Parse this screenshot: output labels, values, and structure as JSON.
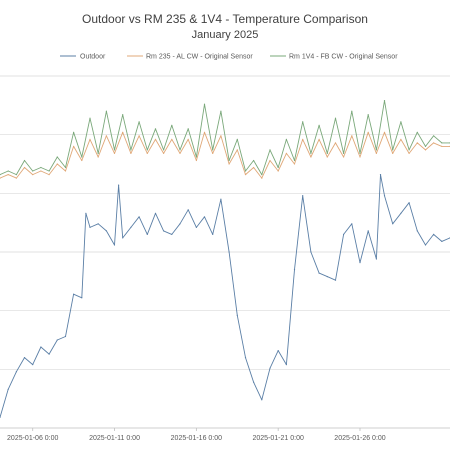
{
  "chart_data": {
    "type": "line",
    "title": "Outdoor vs RM 235 & 1V4 - Temperature Comparison",
    "subtitle": "January 2025",
    "xlabel": "",
    "ylabel": "",
    "x_axis": {
      "type": "date",
      "tick_labels": [
        "2025-01-06 0:00",
        "2025-01-11 0:00",
        "2025-01-16 0:00",
        "2025-01-21 0:00",
        "2025-01-26 0:00"
      ],
      "range": [
        "2025-01-04 00:00",
        "2025-01-31 12:00"
      ]
    },
    "y_axis": {
      "gridlines": 6,
      "tick_labels_visible": false
    },
    "grid": true,
    "legend": "top",
    "series": [
      {
        "name": "Outdoor",
        "color": "#5b7fa6",
        "points": [
          [
            "2025-01-04 00:00",
            3
          ],
          [
            "2025-01-04 12:00",
            11
          ],
          [
            "2025-01-05 00:00",
            16
          ],
          [
            "2025-01-05 12:00",
            20
          ],
          [
            "2025-01-06 00:00",
            18
          ],
          [
            "2025-01-06 12:00",
            23
          ],
          [
            "2025-01-07 00:00",
            21
          ],
          [
            "2025-01-07 12:00",
            25
          ],
          [
            "2025-01-08 00:00",
            26
          ],
          [
            "2025-01-08 12:00",
            38
          ],
          [
            "2025-01-09 00:00",
            37
          ],
          [
            "2025-01-09 06:00",
            61
          ],
          [
            "2025-01-09 12:00",
            57
          ],
          [
            "2025-01-10 00:00",
            58
          ],
          [
            "2025-01-10 12:00",
            56
          ],
          [
            "2025-01-11 00:00",
            52
          ],
          [
            "2025-01-11 06:00",
            69
          ],
          [
            "2025-01-11 12:00",
            54
          ],
          [
            "2025-01-12 00:00",
            57
          ],
          [
            "2025-01-12 12:00",
            60
          ],
          [
            "2025-01-13 00:00",
            55
          ],
          [
            "2025-01-13 12:00",
            61
          ],
          [
            "2025-01-14 00:00",
            56
          ],
          [
            "2025-01-14 12:00",
            55
          ],
          [
            "2025-01-15 00:00",
            58
          ],
          [
            "2025-01-15 12:00",
            62
          ],
          [
            "2025-01-16 00:00",
            57
          ],
          [
            "2025-01-16 12:00",
            60
          ],
          [
            "2025-01-17 00:00",
            55
          ],
          [
            "2025-01-17 12:00",
            65
          ],
          [
            "2025-01-18 00:00",
            50
          ],
          [
            "2025-01-18 12:00",
            32
          ],
          [
            "2025-01-19 00:00",
            20
          ],
          [
            "2025-01-19 12:00",
            13
          ],
          [
            "2025-01-20 00:00",
            8
          ],
          [
            "2025-01-20 12:00",
            17
          ],
          [
            "2025-01-21 00:00",
            22
          ],
          [
            "2025-01-21 12:00",
            18
          ],
          [
            "2025-01-22 00:00",
            45
          ],
          [
            "2025-01-22 12:00",
            66
          ],
          [
            "2025-01-23 00:00",
            50
          ],
          [
            "2025-01-23 12:00",
            44
          ],
          [
            "2025-01-24 00:00",
            43
          ],
          [
            "2025-01-24 12:00",
            42
          ],
          [
            "2025-01-25 00:00",
            55
          ],
          [
            "2025-01-25 12:00",
            58
          ],
          [
            "2025-01-26 00:00",
            47
          ],
          [
            "2025-01-26 12:00",
            56
          ],
          [
            "2025-01-27 00:00",
            48
          ],
          [
            "2025-01-27 06:00",
            72
          ],
          [
            "2025-01-27 12:00",
            66
          ],
          [
            "2025-01-28 00:00",
            58
          ],
          [
            "2025-01-28 12:00",
            61
          ],
          [
            "2025-01-29 00:00",
            64
          ],
          [
            "2025-01-29 12:00",
            56
          ],
          [
            "2025-01-30 00:00",
            52
          ],
          [
            "2025-01-30 12:00",
            55
          ],
          [
            "2025-01-31 00:00",
            53
          ],
          [
            "2025-01-31 12:00",
            54
          ]
        ]
      },
      {
        "name": "Rm 235 - AL CW - Original Sensor",
        "color": "#e0a878",
        "points": [
          [
            "2025-01-04 00:00",
            71
          ],
          [
            "2025-01-04 12:00",
            72
          ],
          [
            "2025-01-05 00:00",
            71
          ],
          [
            "2025-01-05 12:00",
            74
          ],
          [
            "2025-01-06 00:00",
            72
          ],
          [
            "2025-01-06 12:00",
            73
          ],
          [
            "2025-01-07 00:00",
            72
          ],
          [
            "2025-01-07 12:00",
            75
          ],
          [
            "2025-01-08 00:00",
            73
          ],
          [
            "2025-01-08 12:00",
            80
          ],
          [
            "2025-01-09 00:00",
            76
          ],
          [
            "2025-01-09 12:00",
            82
          ],
          [
            "2025-01-10 00:00",
            77
          ],
          [
            "2025-01-10 12:00",
            83
          ],
          [
            "2025-01-11 00:00",
            78
          ],
          [
            "2025-01-11 12:00",
            84
          ],
          [
            "2025-01-12 00:00",
            78
          ],
          [
            "2025-01-12 12:00",
            83
          ],
          [
            "2025-01-13 00:00",
            78
          ],
          [
            "2025-01-13 12:00",
            82
          ],
          [
            "2025-01-14 00:00",
            78
          ],
          [
            "2025-01-14 12:00",
            82
          ],
          [
            "2025-01-15 00:00",
            78
          ],
          [
            "2025-01-15 12:00",
            82
          ],
          [
            "2025-01-16 00:00",
            76
          ],
          [
            "2025-01-16 12:00",
            84
          ],
          [
            "2025-01-17 00:00",
            78
          ],
          [
            "2025-01-17 12:00",
            83
          ],
          [
            "2025-01-18 00:00",
            75
          ],
          [
            "2025-01-18 12:00",
            79
          ],
          [
            "2025-01-19 00:00",
            72
          ],
          [
            "2025-01-19 12:00",
            74
          ],
          [
            "2025-01-20 00:00",
            71
          ],
          [
            "2025-01-20 12:00",
            76
          ],
          [
            "2025-01-21 00:00",
            73
          ],
          [
            "2025-01-21 12:00",
            78
          ],
          [
            "2025-01-22 00:00",
            75
          ],
          [
            "2025-01-22 12:00",
            82
          ],
          [
            "2025-01-23 00:00",
            77
          ],
          [
            "2025-01-23 12:00",
            82
          ],
          [
            "2025-01-24 00:00",
            77
          ],
          [
            "2025-01-24 12:00",
            81
          ],
          [
            "2025-01-25 00:00",
            77
          ],
          [
            "2025-01-25 12:00",
            83
          ],
          [
            "2025-01-26 00:00",
            77
          ],
          [
            "2025-01-26 12:00",
            84
          ],
          [
            "2025-01-27 00:00",
            78
          ],
          [
            "2025-01-27 12:00",
            84
          ],
          [
            "2025-01-28 00:00",
            78
          ],
          [
            "2025-01-28 12:00",
            82
          ],
          [
            "2025-01-29 00:00",
            78
          ],
          [
            "2025-01-29 12:00",
            81
          ],
          [
            "2025-01-30 00:00",
            79
          ],
          [
            "2025-01-30 12:00",
            81
          ],
          [
            "2025-01-31 00:00",
            80
          ],
          [
            "2025-01-31 12:00",
            80
          ]
        ]
      },
      {
        "name": "Rm 1V4 - FB CW - Original Sensor",
        "color": "#7aa87a",
        "points": [
          [
            "2025-01-04 00:00",
            72
          ],
          [
            "2025-01-04 12:00",
            73
          ],
          [
            "2025-01-05 00:00",
            72
          ],
          [
            "2025-01-05 12:00",
            76
          ],
          [
            "2025-01-06 00:00",
            73
          ],
          [
            "2025-01-06 12:00",
            74
          ],
          [
            "2025-01-07 00:00",
            73
          ],
          [
            "2025-01-07 12:00",
            77
          ],
          [
            "2025-01-08 00:00",
            74
          ],
          [
            "2025-01-08 12:00",
            84
          ],
          [
            "2025-01-09 00:00",
            77
          ],
          [
            "2025-01-09 12:00",
            88
          ],
          [
            "2025-01-10 00:00",
            78
          ],
          [
            "2025-01-10 12:00",
            90
          ],
          [
            "2025-01-11 00:00",
            79
          ],
          [
            "2025-01-11 12:00",
            89
          ],
          [
            "2025-01-12 00:00",
            79
          ],
          [
            "2025-01-12 12:00",
            87
          ],
          [
            "2025-01-13 00:00",
            79
          ],
          [
            "2025-01-13 12:00",
            85
          ],
          [
            "2025-01-14 00:00",
            79
          ],
          [
            "2025-01-14 12:00",
            86
          ],
          [
            "2025-01-15 00:00",
            79
          ],
          [
            "2025-01-15 12:00",
            85
          ],
          [
            "2025-01-16 00:00",
            77
          ],
          [
            "2025-01-16 12:00",
            92
          ],
          [
            "2025-01-17 00:00",
            79
          ],
          [
            "2025-01-17 12:00",
            90
          ],
          [
            "2025-01-18 00:00",
            76
          ],
          [
            "2025-01-18 12:00",
            82
          ],
          [
            "2025-01-19 00:00",
            73
          ],
          [
            "2025-01-19 12:00",
            76
          ],
          [
            "2025-01-20 00:00",
            72
          ],
          [
            "2025-01-20 12:00",
            79
          ],
          [
            "2025-01-21 00:00",
            74
          ],
          [
            "2025-01-21 12:00",
            82
          ],
          [
            "2025-01-22 00:00",
            76
          ],
          [
            "2025-01-22 12:00",
            87
          ],
          [
            "2025-01-23 00:00",
            78
          ],
          [
            "2025-01-23 12:00",
            86
          ],
          [
            "2025-01-24 00:00",
            78
          ],
          [
            "2025-01-24 12:00",
            88
          ],
          [
            "2025-01-25 00:00",
            78
          ],
          [
            "2025-01-25 12:00",
            90
          ],
          [
            "2025-01-26 00:00",
            78
          ],
          [
            "2025-01-26 12:00",
            89
          ],
          [
            "2025-01-27 00:00",
            79
          ],
          [
            "2025-01-27 12:00",
            93
          ],
          [
            "2025-01-28 00:00",
            79
          ],
          [
            "2025-01-28 12:00",
            87
          ],
          [
            "2025-01-29 00:00",
            79
          ],
          [
            "2025-01-29 12:00",
            84
          ],
          [
            "2025-01-30 00:00",
            80
          ],
          [
            "2025-01-30 12:00",
            83
          ],
          [
            "2025-01-31 00:00",
            81
          ],
          [
            "2025-01-31 12:00",
            81
          ]
        ]
      }
    ]
  }
}
